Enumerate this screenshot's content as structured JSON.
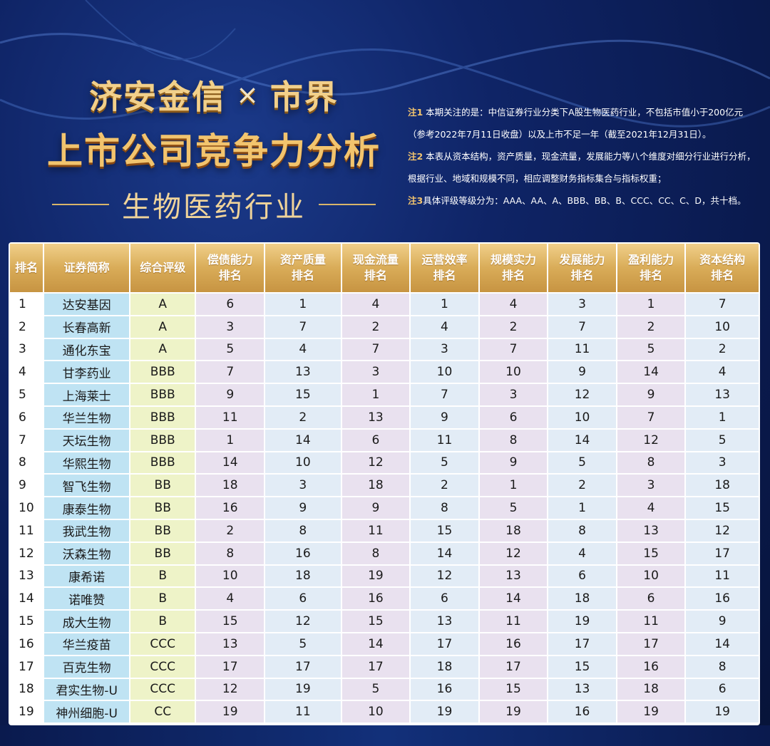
{
  "header": {
    "brand_left": "济安金信",
    "brand_x": "×",
    "brand_right": "市界",
    "title": "上市公司竞争力分析",
    "subtitle": "生物医药行业"
  },
  "notes": [
    {
      "tag": "注1",
      "text": " 本期关注的是：中信证券行业分类下A股生物医药行业，不包括市值小于200亿元（参考2022年7月11日收盘）以及上市不足一年（截至2021年12月31日）。"
    },
    {
      "tag": "注2",
      "text": " 本表从资本结构，资产质量，现金流量，发展能力等八个维度对细分行业进行分析，根据行业、地域和规模不同，相应调整财务指标集合与指标权重；"
    },
    {
      "tag": "注3",
      "text": "具体评级等级分为：AAA、AA、A、BBB、BB、B、CCC、CC、C、D，共十档。"
    }
  ],
  "table": {
    "headers": [
      "排名",
      "证券简称",
      "综合评级",
      "偿债能力排名",
      "资产质量排名",
      "现金流量排名",
      "运营效率排名",
      "规模实力排名",
      "发展能力排名",
      "盈利能力排名",
      "资本结构排名"
    ],
    "header_lines": [
      [
        "排名",
        ""
      ],
      [
        "证券简称",
        ""
      ],
      [
        "综合评级",
        ""
      ],
      [
        "偿债能力",
        "排名"
      ],
      [
        "资产质量",
        "排名"
      ],
      [
        "现金流量",
        "排名"
      ],
      [
        "运营效率",
        "排名"
      ],
      [
        "规模实力",
        "排名"
      ],
      [
        "发展能力",
        "排名"
      ],
      [
        "盈利能力",
        "排名"
      ],
      [
        "资本结构",
        "排名"
      ]
    ],
    "rows": [
      [
        "1",
        "达安基因",
        "A",
        "6",
        "1",
        "4",
        "1",
        "4",
        "3",
        "1",
        "7"
      ],
      [
        "2",
        "长春高新",
        "A",
        "3",
        "7",
        "2",
        "4",
        "2",
        "7",
        "2",
        "10"
      ],
      [
        "3",
        "通化东宝",
        "A",
        "5",
        "4",
        "7",
        "3",
        "7",
        "11",
        "5",
        "2"
      ],
      [
        "4",
        "甘李药业",
        "BBB",
        "7",
        "13",
        "3",
        "10",
        "10",
        "9",
        "14",
        "4"
      ],
      [
        "5",
        "上海莱士",
        "BBB",
        "9",
        "15",
        "1",
        "7",
        "3",
        "12",
        "9",
        "13"
      ],
      [
        "6",
        "华兰生物",
        "BBB",
        "11",
        "2",
        "13",
        "9",
        "6",
        "10",
        "7",
        "1"
      ],
      [
        "7",
        "天坛生物",
        "BBB",
        "1",
        "14",
        "6",
        "11",
        "8",
        "14",
        "12",
        "5"
      ],
      [
        "8",
        "华熙生物",
        "BBB",
        "14",
        "10",
        "12",
        "5",
        "9",
        "5",
        "8",
        "3"
      ],
      [
        "9",
        "智飞生物",
        "BB",
        "18",
        "3",
        "18",
        "2",
        "1",
        "2",
        "3",
        "18"
      ],
      [
        "10",
        "康泰生物",
        "BB",
        "16",
        "9",
        "9",
        "8",
        "5",
        "1",
        "4",
        "15"
      ],
      [
        "11",
        "我武生物",
        "BB",
        "2",
        "8",
        "11",
        "15",
        "18",
        "8",
        "13",
        "12"
      ],
      [
        "12",
        "沃森生物",
        "BB",
        "8",
        "16",
        "8",
        "14",
        "12",
        "4",
        "15",
        "17"
      ],
      [
        "13",
        "康希诺",
        "B",
        "10",
        "18",
        "19",
        "12",
        "13",
        "6",
        "10",
        "11"
      ],
      [
        "14",
        "诺唯赞",
        "B",
        "4",
        "6",
        "16",
        "6",
        "14",
        "18",
        "6",
        "16"
      ],
      [
        "15",
        "成大生物",
        "B",
        "15",
        "12",
        "15",
        "13",
        "11",
        "19",
        "11",
        "9"
      ],
      [
        "16",
        "华兰疫苗",
        "CCC",
        "13",
        "5",
        "14",
        "17",
        "16",
        "17",
        "17",
        "14"
      ],
      [
        "17",
        "百克生物",
        "CCC",
        "17",
        "17",
        "17",
        "18",
        "17",
        "15",
        "16",
        "8"
      ],
      [
        "18",
        "君实生物-U",
        "CCC",
        "12",
        "19",
        "5",
        "16",
        "15",
        "13",
        "18",
        "6"
      ],
      [
        "19",
        "神州细胞-U",
        "CC",
        "19",
        "11",
        "10",
        "19",
        "19",
        "16",
        "19",
        "19"
      ]
    ]
  },
  "colors": {
    "background": "#0f2466",
    "header_gold": "#d9ac58",
    "name_col": "#bfe3f3",
    "rating_col": "#eef3c8",
    "value_col": "#e9e1ef"
  }
}
